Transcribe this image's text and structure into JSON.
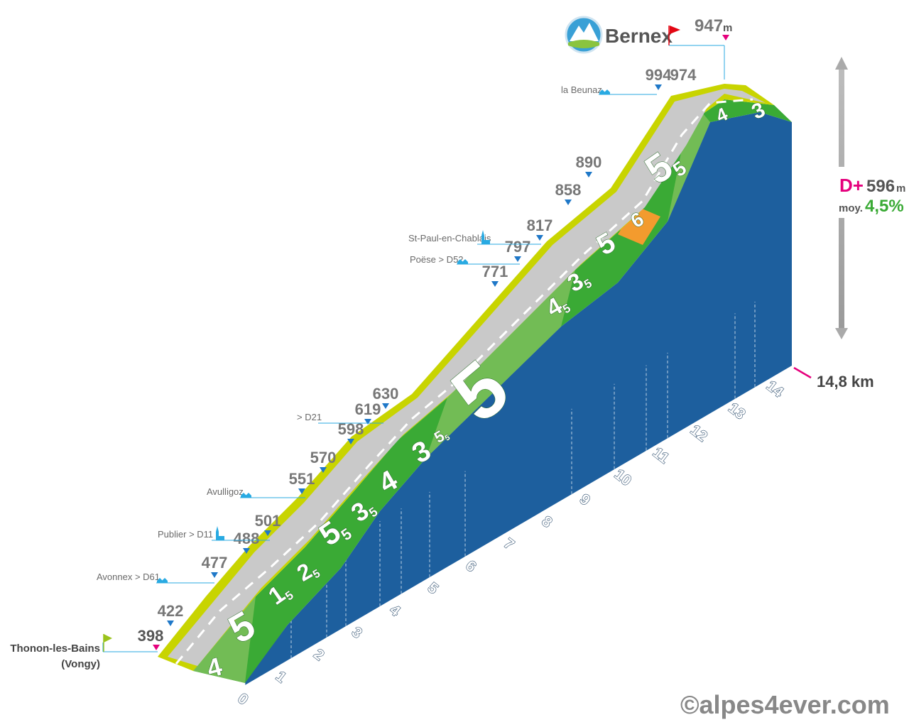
{
  "chart_data": {
    "type": "area",
    "title": "Bernex",
    "start": {
      "name": "Thonon-les-Bains",
      "sub": "(Vongy)",
      "elevation": "398"
    },
    "summit": {
      "elevation": "947",
      "unit": "m"
    },
    "total_distance": "14,8 km",
    "climb": {
      "label": "D+",
      "value": "596",
      "unit": "m",
      "avg_label": "moy.",
      "avg": "4,5%"
    },
    "km_ticks": [
      "0",
      "1",
      "2",
      "3",
      "4",
      "5",
      "6",
      "7",
      "8",
      "9",
      "10",
      "11",
      "12",
      "13",
      "14"
    ],
    "profile": [
      {
        "km": 0,
        "elev": 398
      },
      {
        "km": 1,
        "elev": 422
      },
      {
        "km": 2,
        "elev": 477
      },
      {
        "km": 2.4,
        "elev": 488
      },
      {
        "km": 2.8,
        "elev": 501
      },
      {
        "km": 3.9,
        "elev": 551
      },
      {
        "km": 4.3,
        "elev": 570
      },
      {
        "km": 5.2,
        "elev": 598
      },
      {
        "km": 5.6,
        "elev": 619
      },
      {
        "km": 5.8,
        "elev": 630
      },
      {
        "km": 8.8,
        "elev": 771
      },
      {
        "km": 9.3,
        "elev": 797
      },
      {
        "km": 9.8,
        "elev": 817
      },
      {
        "km": 10.3,
        "elev": 858
      },
      {
        "km": 10.8,
        "elev": 890
      },
      {
        "km": 12.2,
        "elev": 994
      },
      {
        "km": 12.7,
        "elev": 974
      },
      {
        "km": 14.8,
        "elev": 947
      }
    ],
    "elevation_labels": [
      "398",
      "422",
      "477",
      "488",
      "501",
      "551",
      "570",
      "598",
      "619",
      "630",
      "771",
      "797",
      "817",
      "858",
      "890",
      "994",
      "974"
    ],
    "segments": [
      {
        "km_from": 0,
        "km_to": 1,
        "grade": "4",
        "color": "#3aaa35"
      },
      {
        "km_from": 1,
        "km_to": 2,
        "grade": "5",
        "color": "#3aaa35"
      },
      {
        "km_from": 2,
        "km_to": 2.6,
        "grade": "1",
        "sub": "5",
        "color": "#3aaa35"
      },
      {
        "km_from": 2.6,
        "km_to": 3.2,
        "grade": "2",
        "sub": "5",
        "color": "#3aaa35"
      },
      {
        "km_from": 3.2,
        "km_to": 4.4,
        "grade": "5",
        "sub": "5",
        "color": "#3aaa35"
      },
      {
        "km_from": 4.4,
        "km_to": 5,
        "grade": "3",
        "sub": "5",
        "color": "#3aaa35"
      },
      {
        "km_from": 5,
        "km_to": 5.7,
        "grade": "4",
        "color": "#3aaa35"
      },
      {
        "km_from": 5.7,
        "km_to": 6.3,
        "grade": "3",
        "color": "#3aaa35"
      },
      {
        "km_from": 6.3,
        "km_to": 6.5,
        "grade": "5",
        "sub": "5",
        "color": "#3aaa35"
      },
      {
        "km_from": 6.5,
        "km_to": 9,
        "grade": "5",
        "color": "#3aaa35"
      },
      {
        "km_from": 9,
        "km_to": 9.6,
        "grade": "4",
        "sub": "5",
        "color": "#3aaa35"
      },
      {
        "km_from": 9.6,
        "km_to": 10.2,
        "grade": "3",
        "sub": "5",
        "color": "#3aaa35"
      },
      {
        "km_from": 10.2,
        "km_to": 11,
        "grade": "5",
        "color": "#3aaa35"
      },
      {
        "km_from": 11,
        "km_to": 11.6,
        "grade": "6",
        "color": "#f39b2e"
      },
      {
        "km_from": 11.6,
        "km_to": 13,
        "grade": "5",
        "sub": "5",
        "color": "#3aaa35"
      },
      {
        "km_from": 13,
        "km_to": 13.8,
        "grade": "4",
        "color": "#3aaa35"
      },
      {
        "km_from": 13.8,
        "km_to": 14.8,
        "grade": "3",
        "color": "#3aaa35"
      }
    ],
    "places": [
      {
        "name": "la Beunaz",
        "icon": "houses-icon"
      },
      {
        "name": "St-Paul-en-Chablais",
        "icon": "church-icon"
      },
      {
        "name": "Poëse > D52",
        "icon": "houses-icon"
      },
      {
        "name": "> D21",
        "icon": ""
      },
      {
        "name": "Avulligoz",
        "icon": "houses-icon"
      },
      {
        "name": "Publier > D11",
        "icon": "church-icon"
      },
      {
        "name": "Avonnex > D61",
        "icon": "houses-icon"
      }
    ],
    "colors": {
      "side": "#1d5f9e",
      "road": "#c9c9c9",
      "verge": "#c8d400",
      "grade_green": "#3aaa35",
      "grade_orange": "#f39b2e",
      "marker_blue": "#1f78c8",
      "marker_pink": "#e5007d",
      "leader": "#29aae2"
    }
  },
  "copyright": "©alpes4ever.com"
}
